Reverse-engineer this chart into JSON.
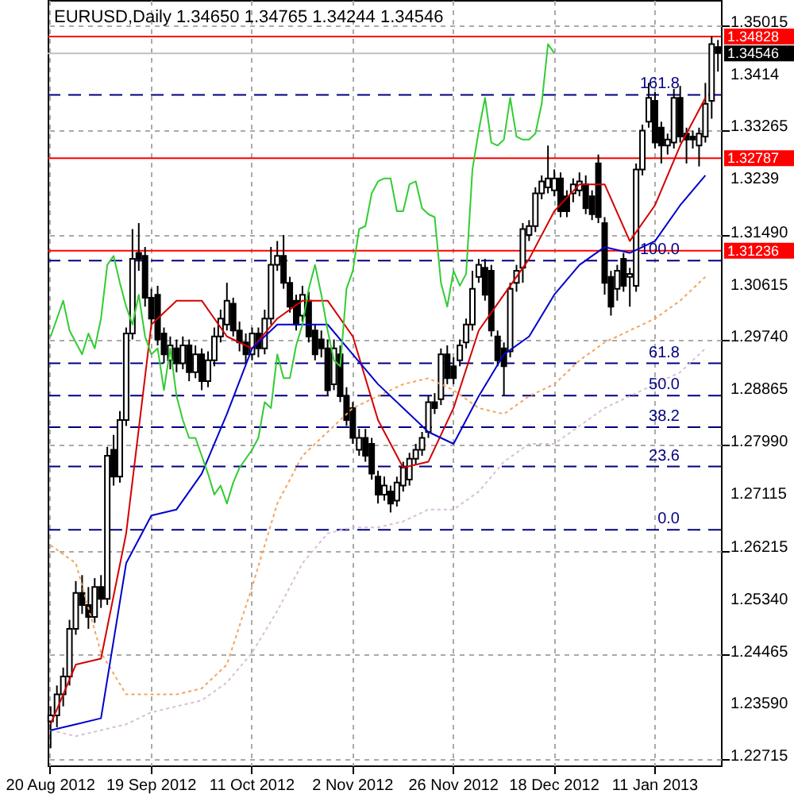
{
  "chart_data": {
    "type": "candlestick",
    "title": "EURUSD,Daily  1.34650 1.34765 1.34244 1.34546",
    "categories": [
      "20 Aug 2012",
      null,
      null,
      null,
      null,
      null,
      null,
      null,
      null,
      null,
      null,
      null,
      null,
      null,
      null,
      null,
      "19 Sep 2012",
      null,
      null,
      null,
      null,
      null,
      null,
      null,
      null,
      null,
      null,
      null,
      null,
      null,
      null,
      null,
      "11 Oct 2012",
      null,
      null,
      null,
      null,
      null,
      null,
      null,
      null,
      null,
      null,
      null,
      null,
      null,
      null,
      null,
      "2 Nov 2012",
      null,
      null,
      null,
      null,
      null,
      null,
      null,
      null,
      null,
      null,
      null,
      null,
      null,
      null,
      null,
      "26 Nov 2012",
      null,
      null,
      null,
      null,
      null,
      null,
      null,
      null,
      null,
      null,
      null,
      null,
      null,
      null,
      null,
      "18 Dec 2012",
      null,
      null,
      null,
      null,
      null,
      null,
      null,
      null,
      null,
      null,
      null,
      null,
      null,
      null,
      null,
      "11 Jan 2013",
      null,
      null,
      null,
      null,
      null,
      null,
      null,
      null,
      null,
      null
    ],
    "ohlc": [
      [
        1.2335,
        1.236,
        1.229,
        1.2345
      ],
      [
        1.2345,
        1.2395,
        1.2325,
        1.238
      ],
      [
        1.238,
        1.2425,
        1.236,
        1.241
      ],
      [
        1.241,
        1.2505,
        1.2395,
        1.249
      ],
      [
        1.249,
        1.257,
        1.248,
        1.255
      ],
      [
        1.255,
        1.258,
        1.2515,
        1.253
      ],
      [
        1.253,
        1.256,
        1.249,
        1.251
      ],
      [
        1.251,
        1.2575,
        1.25,
        1.256
      ],
      [
        1.256,
        1.258,
        1.2525,
        1.254
      ],
      [
        1.254,
        1.2795,
        1.253,
        1.278
      ],
      [
        1.279,
        1.2815,
        1.273,
        1.2745
      ],
      [
        1.2745,
        1.2855,
        1.2735,
        1.284
      ],
      [
        1.284,
        1.2995,
        1.283,
        1.2985
      ],
      [
        1.2985,
        1.316,
        1.2975,
        1.311
      ],
      [
        1.312,
        1.317,
        1.309,
        1.311
      ],
      [
        1.3115,
        1.313,
        1.303,
        1.3045
      ],
      [
        1.3045,
        1.306,
        1.3,
        1.301
      ],
      [
        1.305,
        1.3065,
        1.2965,
        1.2975
      ],
      [
        1.2985,
        1.2995,
        1.2935,
        1.295
      ],
      [
        1.294,
        1.298,
        1.2925,
        1.2965
      ],
      [
        1.296,
        1.2975,
        1.292,
        1.2935
      ],
      [
        1.2935,
        1.298,
        1.2925,
        1.2965
      ],
      [
        1.2965,
        1.2975,
        1.2905,
        1.292
      ],
      [
        1.292,
        1.2965,
        1.291,
        1.295
      ],
      [
        1.295,
        1.296,
        1.289,
        1.2905
      ],
      [
        1.2905,
        1.2955,
        1.2895,
        1.294
      ],
      [
        1.294,
        1.2995,
        1.293,
        1.298
      ],
      [
        1.298,
        1.3025,
        1.297,
        1.301
      ],
      [
        1.3,
        1.307,
        1.299,
        1.304
      ],
      [
        1.3035,
        1.3045,
        1.298,
        1.299
      ],
      [
        1.299,
        1.3005,
        1.2955,
        1.297
      ],
      [
        1.297,
        1.2985,
        1.2935,
        1.295
      ],
      [
        1.295,
        1.2995,
        1.294,
        1.2985
      ],
      [
        1.2985,
        1.2995,
        1.2945,
        1.296
      ],
      [
        1.296,
        1.3025,
        1.295,
        1.301
      ],
      [
        1.301,
        1.313,
        1.3,
        1.31
      ],
      [
        1.31,
        1.314,
        1.309,
        1.3115
      ],
      [
        1.3115,
        1.315,
        1.306,
        1.307
      ],
      [
        1.307,
        1.308,
        1.302,
        1.303
      ],
      [
        1.304,
        1.305,
        1.299,
        1.3
      ],
      [
        1.3015,
        1.3065,
        1.3005,
        1.305
      ],
      [
        1.304,
        1.3055,
        1.297,
        1.298
      ],
      [
        1.299,
        1.3,
        1.294,
        1.295
      ],
      [
        1.2975,
        1.299,
        1.2945,
        1.296
      ],
      [
        1.296,
        1.2975,
        1.288,
        1.289
      ],
      [
        1.29,
        1.2975,
        1.289,
        1.296
      ],
      [
        1.295,
        1.2965,
        1.287,
        1.288
      ],
      [
        1.288,
        1.2895,
        1.283,
        1.284
      ],
      [
        1.286,
        1.287,
        1.28,
        1.281
      ],
      [
        1.279,
        1.2825,
        1.278,
        1.281
      ],
      [
        1.281,
        1.2825,
        1.277,
        1.278
      ],
      [
        1.28,
        1.281,
        1.274,
        1.275
      ],
      [
        1.2745,
        1.2755,
        1.27,
        1.2715
      ],
      [
        1.2715,
        1.2745,
        1.2705,
        1.273
      ],
      [
        1.272,
        1.273,
        1.2685,
        1.27
      ],
      [
        1.2705,
        1.2745,
        1.2695,
        1.2735
      ],
      [
        1.273,
        1.277,
        1.272,
        1.276
      ],
      [
        1.274,
        1.2785,
        1.273,
        1.2775
      ],
      [
        1.2775,
        1.28,
        1.2765,
        1.279
      ],
      [
        1.279,
        1.282,
        1.278,
        1.281
      ],
      [
        1.282,
        1.288,
        1.281,
        1.287
      ],
      [
        1.287,
        1.2885,
        1.285,
        1.286
      ],
      [
        1.2875,
        1.296,
        1.2865,
        1.295
      ],
      [
        1.295,
        1.2965,
        1.29,
        1.291
      ],
      [
        1.293,
        1.2945,
        1.29,
        1.291
      ],
      [
        1.294,
        1.2975,
        1.293,
        1.2965
      ],
      [
        1.297,
        1.301,
        1.296,
        1.3
      ],
      [
        1.3,
        1.309,
        1.299,
        1.306
      ],
      [
        1.308,
        1.311,
        1.307,
        1.31
      ],
      [
        1.3095,
        1.311,
        1.304,
        1.305
      ],
      [
        1.309,
        1.31,
        1.298,
        1.299
      ],
      [
        1.298,
        1.299,
        1.293,
        1.294
      ],
      [
        1.296,
        1.297,
        1.288,
        1.293
      ],
      [
        1.2955,
        1.307,
        1.2945,
        1.306
      ],
      [
        1.307,
        1.31,
        1.3055,
        1.309
      ],
      [
        1.3095,
        1.317,
        1.307,
        1.316
      ],
      [
        1.315,
        1.3175,
        1.314,
        1.3165
      ],
      [
        1.3165,
        1.323,
        1.3155,
        1.322
      ],
      [
        1.322,
        1.325,
        1.321,
        1.324
      ],
      [
        1.323,
        1.33,
        1.322,
        1.3245
      ],
      [
        1.3225,
        1.326,
        1.3215,
        1.3245
      ],
      [
        1.3245,
        1.3255,
        1.318,
        1.319
      ],
      [
        1.3215,
        1.3225,
        1.318,
        1.319
      ],
      [
        1.322,
        1.3245,
        1.3205,
        1.3235
      ],
      [
        1.3225,
        1.3255,
        1.3215,
        1.324
      ],
      [
        1.3235,
        1.325,
        1.3185,
        1.3195
      ],
      [
        1.3215,
        1.3225,
        1.3175,
        1.3185
      ],
      [
        1.327,
        1.3285,
        1.317,
        1.318
      ],
      [
        1.317,
        1.318,
        1.305,
        1.307
      ],
      [
        1.308,
        1.309,
        1.3015,
        1.303
      ],
      [
        1.306,
        1.31,
        1.304,
        1.309
      ],
      [
        1.311,
        1.312,
        1.3055,
        1.3065
      ],
      [
        1.308,
        1.3095,
        1.303,
        1.3085
      ],
      [
        1.3065,
        1.327,
        1.3055,
        1.326
      ],
      [
        1.326,
        1.3335,
        1.325,
        1.3325
      ],
      [
        1.334,
        1.3405,
        1.333,
        1.338
      ],
      [
        1.3375,
        1.339,
        1.3295,
        1.3305
      ],
      [
        1.333,
        1.334,
        1.327,
        1.33
      ],
      [
        1.33,
        1.332,
        1.3285,
        1.331
      ],
      [
        1.3305,
        1.3395,
        1.3295,
        1.338
      ],
      [
        1.338,
        1.34,
        1.3305,
        1.3315
      ],
      [
        1.332,
        1.333,
        1.327,
        1.331
      ],
      [
        1.3315,
        1.3325,
        1.3295,
        1.331
      ],
      [
        1.33,
        1.333,
        1.3265,
        1.332
      ],
      [
        1.3315,
        1.3405,
        1.3305,
        1.337
      ],
      [
        1.3375,
        1.3483,
        1.3345,
        1.347
      ],
      [
        1.3465,
        1.3477,
        1.3424,
        1.3455
      ]
    ],
    "series": [
      {
        "type": "line",
        "color": "#f4a460",
        "line_style": "dotted",
        "values": [
          1.263,
          null,
          null,
          null,
          1.26,
          null,
          null,
          null,
          1.245,
          null,
          null,
          null,
          1.238,
          null,
          null,
          null,
          1.238,
          null,
          null,
          null,
          1.238,
          null,
          null,
          null,
          1.239,
          null,
          null,
          null,
          1.243,
          null,
          null,
          null,
          1.256,
          null,
          null,
          null,
          1.27,
          null,
          null,
          null,
          1.278,
          null,
          null,
          null,
          1.282,
          null,
          null,
          null,
          1.286,
          null,
          null,
          null,
          1.288,
          null,
          null,
          null,
          1.29,
          null,
          null,
          null,
          1.291,
          null,
          null,
          null,
          1.289,
          null,
          null,
          null,
          1.286,
          null,
          null,
          null,
          1.285,
          null,
          null,
          null,
          1.288,
          null,
          null,
          null,
          1.29,
          null,
          null,
          null,
          1.294,
          null,
          null,
          null,
          1.297,
          null,
          null,
          null,
          1.299,
          null,
          null,
          null,
          1.301,
          null,
          null,
          null,
          1.304,
          null,
          null,
          null,
          1.308,
          null,
          null
        ]
      },
      {
        "type": "line",
        "color": "#d8bfd8",
        "line_style": "dotted",
        "values": [
          1.232,
          null,
          null,
          null,
          1.231,
          null,
          null,
          null,
          1.232,
          null,
          null,
          null,
          1.233,
          null,
          null,
          null,
          1.235,
          null,
          null,
          null,
          1.236,
          null,
          null,
          null,
          1.237,
          null,
          null,
          null,
          1.24,
          null,
          null,
          null,
          1.245,
          null,
          null,
          null,
          1.252,
          null,
          null,
          null,
          1.26,
          null,
          null,
          null,
          1.265,
          null,
          null,
          null,
          1.266,
          null,
          null,
          null,
          1.266,
          null,
          null,
          null,
          1.267,
          null,
          null,
          null,
          1.269,
          null,
          null,
          null,
          1.269,
          null,
          null,
          null,
          1.272,
          null,
          null,
          null,
          1.277,
          null,
          null,
          null,
          1.28,
          null,
          null,
          null,
          1.28,
          null,
          null,
          null,
          1.283,
          null,
          null,
          null,
          1.286,
          null,
          null,
          null,
          1.288,
          null,
          null,
          null,
          1.29,
          null,
          null,
          null,
          1.292,
          null,
          null,
          null,
          1.296,
          null,
          null
        ]
      },
      {
        "type": "line",
        "color": "#d40000",
        "values": [
          1.233,
          null,
          null,
          null,
          1.243,
          null,
          null,
          null,
          1.244,
          null,
          null,
          null,
          1.265,
          null,
          null,
          null,
          1.3,
          null,
          null,
          null,
          1.304,
          null,
          null,
          null,
          1.304,
          null,
          null,
          null,
          1.298,
          null,
          null,
          null,
          1.296,
          null,
          null,
          null,
          1.301,
          null,
          null,
          null,
          1.304,
          null,
          null,
          null,
          1.304,
          null,
          null,
          null,
          1.298,
          null,
          null,
          null,
          1.284,
          null,
          null,
          null,
          1.276,
          null,
          null,
          null,
          1.277,
          null,
          null,
          null,
          1.286,
          null,
          null,
          null,
          1.299,
          null,
          null,
          null,
          1.305,
          null,
          null,
          null,
          1.311,
          null,
          null,
          null,
          1.319,
          null,
          null,
          null,
          1.3235,
          null,
          null,
          null,
          1.3235,
          null,
          null,
          null,
          1.314,
          null,
          null,
          null,
          1.32,
          null,
          null,
          null,
          1.33,
          null,
          null,
          null,
          1.338,
          null,
          null
        ]
      },
      {
        "type": "line",
        "color": "#0000cc",
        "values": [
          1.232,
          null,
          null,
          null,
          1.233,
          null,
          null,
          null,
          1.234,
          null,
          null,
          null,
          1.26,
          null,
          null,
          null,
          1.268,
          null,
          null,
          null,
          1.269,
          null,
          null,
          null,
          1.275,
          null,
          null,
          null,
          1.285,
          null,
          null,
          null,
          1.296,
          null,
          null,
          null,
          1.3,
          null,
          null,
          null,
          1.3,
          null,
          null,
          null,
          1.3,
          null,
          null,
          null,
          1.295,
          null,
          null,
          null,
          1.29,
          null,
          null,
          null,
          1.286,
          null,
          null,
          null,
          1.282,
          null,
          null,
          null,
          1.28,
          null,
          null,
          null,
          1.288,
          null,
          null,
          null,
          1.295,
          null,
          null,
          null,
          1.298,
          null,
          null,
          null,
          1.305,
          null,
          null,
          null,
          1.31,
          null,
          null,
          null,
          1.313,
          null,
          null,
          null,
          1.312,
          null,
          null,
          null,
          1.314,
          null,
          null,
          null,
          1.32,
          null,
          null,
          null,
          1.325,
          null,
          null
        ]
      },
      {
        "type": "line",
        "color": "#33cc33",
        "values": [
          1.298,
          1.301,
          1.304,
          1.299,
          1.297,
          1.295,
          1.2985,
          1.296,
          1.301,
          1.31,
          1.3115,
          1.307,
          1.303,
          1.3,
          1.305,
          1.298,
          1.295,
          1.296,
          1.289,
          1.296,
          1.288,
          1.284,
          1.281,
          1.281,
          1.278,
          1.275,
          1.2715,
          1.273,
          1.27,
          1.2735,
          1.276,
          1.2775,
          1.279,
          1.281,
          1.287,
          1.286,
          1.295,
          1.291,
          1.291,
          1.2965,
          1.3,
          1.306,
          1.31,
          1.305,
          1.299,
          1.294,
          1.293,
          1.306,
          1.309,
          1.316,
          1.3165,
          1.322,
          1.324,
          1.3245,
          1.3245,
          1.319,
          1.319,
          1.3235,
          1.324,
          1.3195,
          1.3185,
          1.318,
          1.307,
          1.303,
          1.309,
          1.3065,
          1.3085,
          1.326,
          1.3325,
          1.338,
          1.3305,
          1.33,
          1.331,
          1.338,
          1.3315,
          1.331,
          1.331,
          1.332,
          1.337,
          1.347,
          1.3455,
          null,
          null,
          null,
          null,
          null,
          null,
          null,
          null,
          null,
          null,
          null,
          null,
          null,
          null,
          null,
          null,
          null,
          null,
          null,
          null,
          null,
          null,
          null,
          null,
          null,
          null
        ]
      }
    ],
    "ylim": [
      1.2261,
      1.3544
    ],
    "yticks": [
      1.35015,
      1.3414,
      1.33265,
      1.3239,
      {
        "value": 1.3149,
        "label": "1.31490"
      },
      1.30615,
      {
        "value": 1.2974,
        "label": "1.29740"
      },
      1.28865,
      {
        "value": 1.2799,
        "label": "1.27990"
      },
      1.27115,
      1.26215,
      {
        "value": 1.2534,
        "label": "1.25340"
      },
      1.24465,
      {
        "value": 1.2359,
        "label": "1.23590"
      },
      1.22715
    ],
    "ref_lines": [
      {
        "axis": "y",
        "value": 1.34828,
        "label": "1.34828",
        "color": "#ff0000"
      },
      {
        "axis": "y",
        "value": 1.34546,
        "label": "1.34546",
        "color": "#c0c0c0"
      },
      {
        "axis": "y",
        "value": 1.32787,
        "label": "1.32787",
        "color": "#ff0000"
      },
      {
        "axis": "y",
        "value": 1.31236,
        "label": "1.31236",
        "color": "#ff0000"
      },
      {
        "axis": "y",
        "value": 1.3385,
        "color": "#000080",
        "line_style": "dashed"
      },
      {
        "axis": "y",
        "value": 1.3107,
        "color": "#000080",
        "line_style": "dashed"
      },
      {
        "axis": "y",
        "value": 1.2935,
        "color": "#000080",
        "line_style": "dashed"
      },
      {
        "axis": "y",
        "value": 1.2881,
        "color": "#000080",
        "line_style": "dashed"
      },
      {
        "axis": "y",
        "value": 1.2828,
        "color": "#000080",
        "line_style": "dashed"
      },
      {
        "axis": "y",
        "value": 1.2762,
        "color": "#000080",
        "line_style": "dashed"
      },
      {
        "axis": "y",
        "value": 1.2656,
        "color": "#000080",
        "line_style": "dashed"
      }
    ],
    "annotations": [
      {
        "text": "161.8",
        "y": 1.3385
      },
      {
        "text": "100.0",
        "y": 1.3107
      },
      {
        "text": "61.8",
        "y": 1.2935
      },
      {
        "text": "50.0",
        "y": 1.2881
      },
      {
        "text": "38.2",
        "y": 1.2828
      },
      {
        "text": "23.6",
        "y": 1.2762
      },
      {
        "text": "0.0",
        "y": 1.2656
      }
    ],
    "grid": true
  }
}
